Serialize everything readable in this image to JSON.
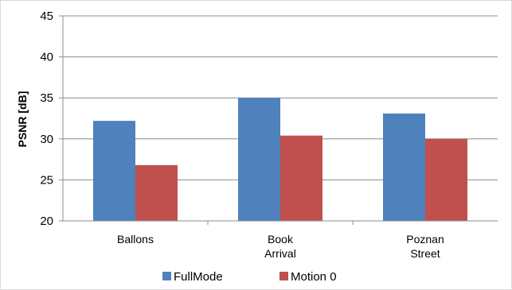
{
  "chart_data": {
    "type": "bar",
    "categories": [
      [
        "Ballons"
      ],
      [
        "Book",
        "Arrival"
      ],
      [
        "Poznan",
        "Street"
      ]
    ],
    "series": [
      {
        "name": "FullMode",
        "values": [
          32.2,
          35.0,
          33.1
        ],
        "color": "#4F81BD"
      },
      {
        "name": "Motion 0",
        "values": [
          26.8,
          30.4,
          30.0
        ],
        "color": "#C0504D"
      }
    ],
    "title": "",
    "xlabel": "",
    "ylabel": "PSNR [dB]",
    "ylim": [
      20,
      45
    ],
    "yticks": [
      20,
      25,
      30,
      35,
      40,
      45
    ],
    "grid": true,
    "legend_position": "bottom"
  }
}
